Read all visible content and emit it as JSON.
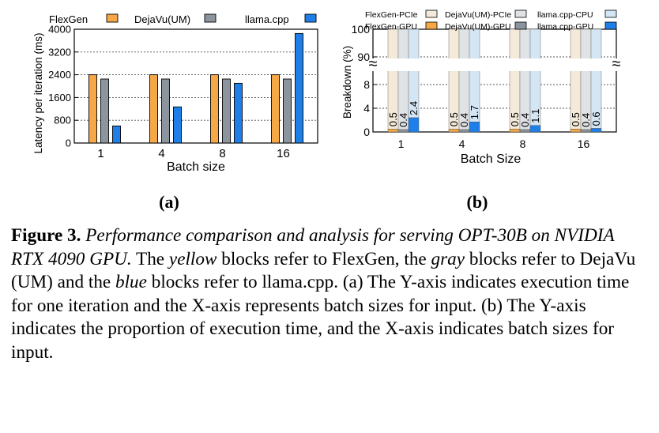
{
  "chart_data": [
    {
      "type": "bar",
      "panel": "(a)",
      "ylabel": "Latency per iteration (ms)",
      "xlabel": "Batch size",
      "ylim": [
        0,
        4000
      ],
      "yticks": [
        0,
        800,
        1600,
        2400,
        3200,
        4000
      ],
      "categories": [
        "1",
        "4",
        "8",
        "16"
      ],
      "series": [
        {
          "name": "FlexGen",
          "color": "#f5a845",
          "values": [
            2400,
            2400,
            2400,
            2400
          ]
        },
        {
          "name": "DejaVu(UM)",
          "color": "#8c959d",
          "values": [
            2250,
            2250,
            2250,
            2250
          ]
        },
        {
          "name": "llama.cpp",
          "color": "#1f7fe8",
          "values": [
            600,
            1270,
            2100,
            3850
          ]
        }
      ]
    },
    {
      "type": "bar",
      "panel": "(b)",
      "ylabel": "Breakdown (%)",
      "xlabel": "Batch Size",
      "yticks": [
        "0",
        "4",
        "8",
        "90",
        "100"
      ],
      "categories": [
        "1",
        "4",
        "8",
        "16"
      ],
      "series": [
        {
          "name": "FlexGen-PCIe",
          "color": "#f3ead9"
        },
        {
          "name": "FlexGen-GPU",
          "color": "#f5a845"
        },
        {
          "name": "DejaVu(UM)-PCIe",
          "color": "#e0e3e6"
        },
        {
          "name": "DejaVu(UM)-GPU",
          "color": "#8c959d"
        },
        {
          "name": "llama.cpp-CPU",
          "color": "#d4e5f4"
        },
        {
          "name": "llama.cpp-GPU",
          "color": "#1f7fe8"
        }
      ],
      "gpu_labels": [
        [
          "0.5",
          "0.4",
          "2.4"
        ],
        [
          "0.5",
          "0.4",
          "1.7"
        ],
        [
          "0.5",
          "0.4",
          "1.1"
        ],
        [
          "0.5",
          "0.4",
          "0.6"
        ]
      ],
      "gpu_values": [
        [
          0.5,
          0.4,
          2.4
        ],
        [
          0.5,
          0.4,
          1.7
        ],
        [
          0.5,
          0.4,
          1.1
        ],
        [
          0.5,
          0.4,
          0.6
        ]
      ],
      "break_symbol": "≈"
    }
  ],
  "labels": {
    "panel_a": "(a)",
    "panel_b": "(b)"
  },
  "caption": {
    "figure_label": "Figure 3.",
    "title": "Performance comparison and analysis for serving OPT-30B on NVIDIA RTX 4090 GPU.",
    "t1": "The",
    "yellow": "yellow",
    "t2": "blocks refer to FlexGen, the",
    "gray": "gray",
    "t3": "blocks refer to DejaVu (UM) and the",
    "blue": "blue",
    "t4": "blocks refer to llama.cpp. (a) The Y-axis indicates execution time for one iteration and the X-axis represents batch sizes for input. (b) The Y-axis indicates the proportion of execution time, and the X-axis indicates batch sizes for input."
  }
}
